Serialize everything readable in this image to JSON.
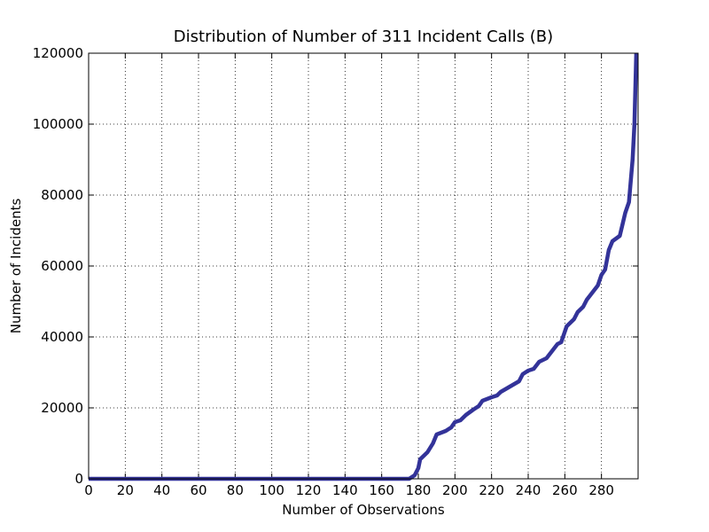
{
  "chart_data": {
    "type": "line",
    "title": "Distribution of Number of 311 Incident Calls (B)",
    "x_label": "Number of Observations",
    "y_label": "Number of Incidents",
    "series": [
      {
        "name": "Incidents",
        "color": "#333399",
        "x": [
          0,
          175,
          178,
          180,
          181,
          185,
          188,
          190,
          195,
          198,
          200,
          203,
          206,
          210,
          213,
          215,
          220,
          223,
          225,
          230,
          235,
          237,
          240,
          243,
          246,
          250,
          253,
          256,
          258,
          261,
          265,
          267,
          270,
          272,
          275,
          278,
          280,
          282,
          284,
          286,
          290,
          293,
          295,
          297,
          298,
          299
        ],
        "values": [
          0,
          0,
          1000,
          3000,
          5500,
          7500,
          10000,
          12500,
          13500,
          14500,
          16000,
          16500,
          18000,
          19500,
          20500,
          22000,
          23000,
          23500,
          24500,
          26000,
          27500,
          29500,
          30500,
          31000,
          33000,
          34000,
          36000,
          38000,
          38500,
          43000,
          45000,
          47000,
          48500,
          50500,
          52500,
          54500,
          57500,
          59000,
          64500,
          67000,
          68500,
          75000,
          78000,
          90000,
          100000,
          120000
        ]
      }
    ],
    "xlim": [
      0,
      300
    ],
    "ylim": [
      0,
      120000
    ],
    "xticks": [
      0,
      20,
      40,
      60,
      80,
      100,
      120,
      140,
      160,
      180,
      200,
      220,
      240,
      260,
      280
    ],
    "yticks": [
      0,
      20000,
      40000,
      60000,
      80000,
      100000,
      120000
    ],
    "grid": true
  }
}
